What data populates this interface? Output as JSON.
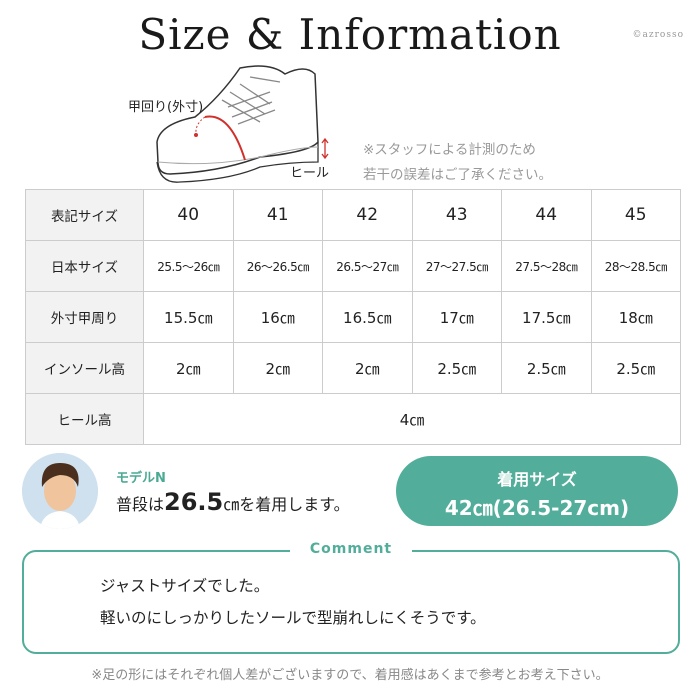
{
  "title": "Size & Information",
  "brand": "©azrosso",
  "diagram": {
    "instep_label": "甲回り(外寸)",
    "heel_label": "ヒール"
  },
  "note": [
    "※スタッフによる計測のため",
    "若干の誤差はご了承ください。"
  ],
  "table": {
    "rows": [
      {
        "label": "表記サイズ",
        "values": [
          "40",
          "41",
          "42",
          "43",
          "44",
          "45"
        ]
      },
      {
        "label": "日本サイズ",
        "values": [
          "25.5～26㎝",
          "26～26.5㎝",
          "26.5～27㎝",
          "27～27.5㎝",
          "27.5～28㎝",
          "28～28.5㎝"
        ]
      },
      {
        "label": "外寸甲周り",
        "values": [
          "15.5㎝",
          "16㎝",
          "16.5㎝",
          "17㎝",
          "17.5㎝",
          "18㎝"
        ]
      },
      {
        "label": "インソール高",
        "values": [
          "2㎝",
          "2㎝",
          "2㎝",
          "2.5㎝",
          "2.5㎝",
          "2.5㎝"
        ]
      },
      {
        "label": "ヒール高",
        "values": [
          "4㎝"
        ]
      }
    ]
  },
  "model": {
    "name": "モデルN",
    "text_pre": "普段は",
    "size": "26.5",
    "text_post": "㎝を着用します。"
  },
  "worn": {
    "label": "着用サイズ",
    "value": "42㎝(26.5-27cm)"
  },
  "comment": {
    "label": "Comment",
    "lines": [
      "ジャストサイズでした。",
      "軽いのにしっかりしたソールで型崩れしにくそうです。"
    ]
  },
  "footer": "※足の形にはそれぞれ個人差がございますので、着用感はあくまで参考とお考え下さい。",
  "colors": {
    "accent": "#52ad9a",
    "instep_line": "#d0312d"
  }
}
